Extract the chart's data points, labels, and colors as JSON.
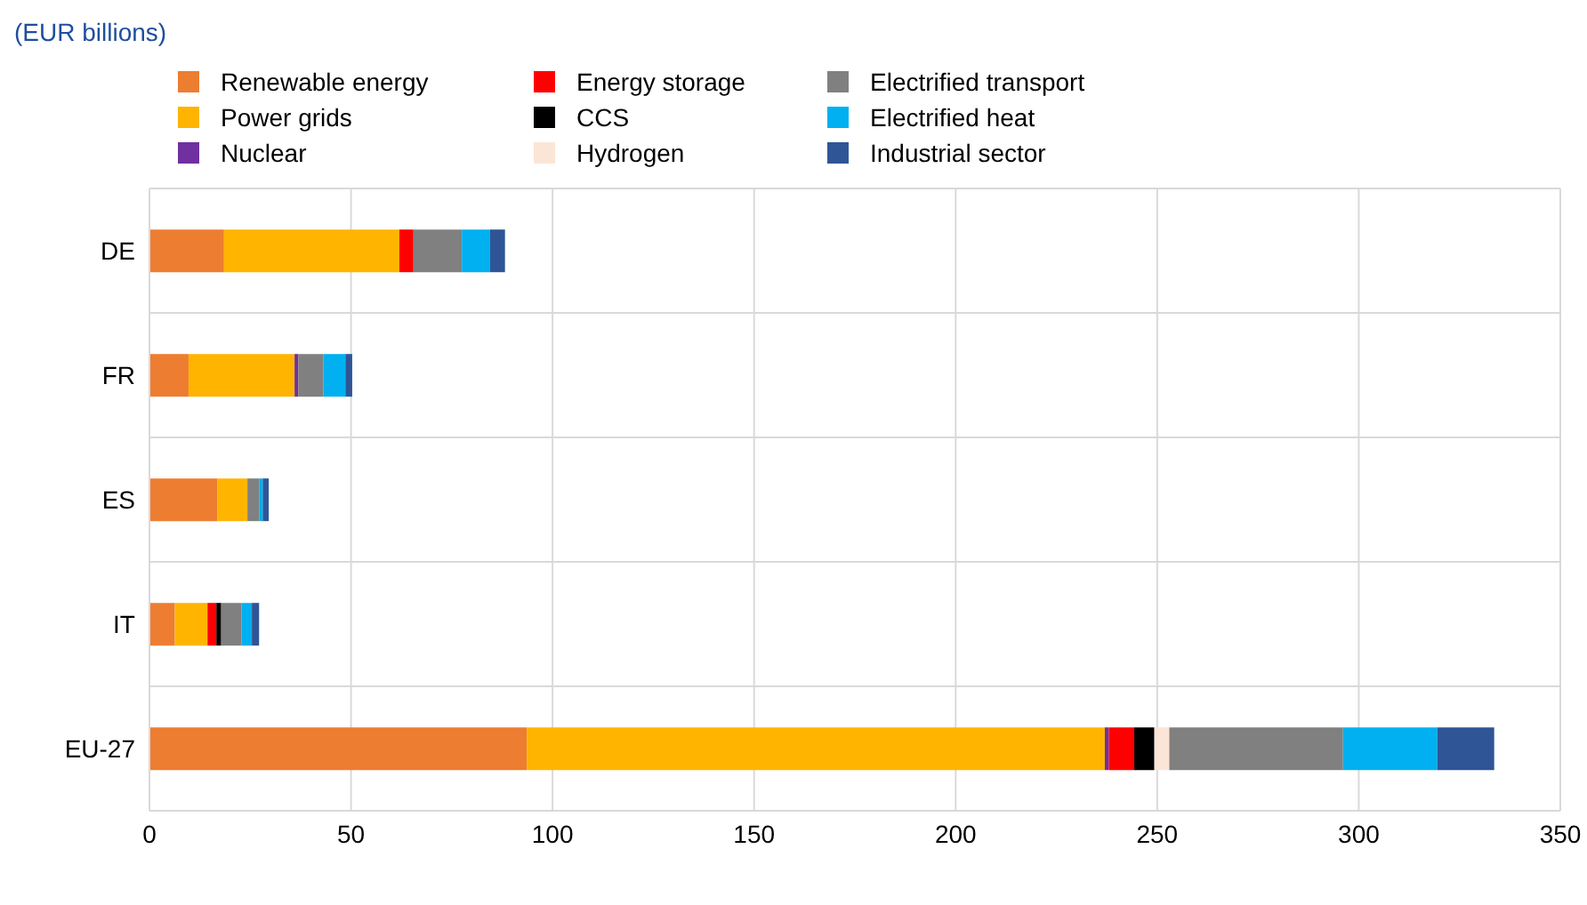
{
  "chart_data": {
    "type": "bar",
    "orientation": "horizontal",
    "stacked": true,
    "title": "(EUR billions)",
    "categories": [
      "DE",
      "FR",
      "ES",
      "IT",
      "EU-27"
    ],
    "series": [
      {
        "name": "Renewable energy",
        "color": "#ed7d31",
        "values": [
          18.5,
          9.7,
          16.8,
          6.3,
          93.6
        ]
      },
      {
        "name": "Power grids",
        "color": "#ffb400",
        "values": [
          43.5,
          26.3,
          7.5,
          8.1,
          143.4
        ]
      },
      {
        "name": "Nuclear",
        "color": "#7030a0",
        "values": [
          0,
          0.9,
          0,
          0,
          1.0
        ]
      },
      {
        "name": "Energy storage",
        "color": "#ff0000",
        "values": [
          3.5,
          0,
          0,
          2.2,
          6.3
        ]
      },
      {
        "name": "CCS",
        "color": "#000000",
        "values": [
          0,
          0,
          0,
          1.2,
          5.0
        ]
      },
      {
        "name": "Hydrogen",
        "color": "#fbe5d6",
        "values": [
          null,
          null,
          0,
          0,
          3.7
        ]
      },
      {
        "name": "Electrified transport",
        "color": "#808080",
        "values": [
          12,
          6.2,
          2.9,
          5.0,
          43.1
        ]
      },
      {
        "name": "Electrified heat",
        "color": "#00b0f0",
        "values": [
          7,
          5.5,
          0.9,
          2.6,
          23.4
        ]
      },
      {
        "name": "Industrial sector",
        "color": "#2f5597",
        "values": [
          3.7,
          1.7,
          1.5,
          1.8,
          14.1
        ]
      }
    ],
    "xlim": [
      0,
      350
    ],
    "xticks": [
      0,
      50,
      100,
      150,
      200,
      250,
      300,
      350
    ],
    "grid": true,
    "legend": "top"
  }
}
